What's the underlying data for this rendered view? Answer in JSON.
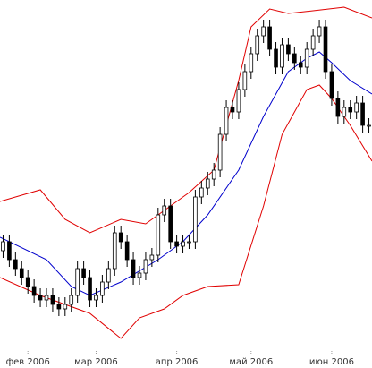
{
  "chart_data": {
    "type": "candlestick",
    "xlim": [
      -0.5,
      59.5
    ],
    "ylim": [
      0,
      411
    ],
    "x_labels": [
      {
        "value": 4,
        "label": "фев 2006"
      },
      {
        "value": 15,
        "label": "мар 2006"
      },
      {
        "value": 28,
        "label": "апр 2006"
      },
      {
        "value": 40,
        "label": "май 2006"
      },
      {
        "value": 53,
        "label": "июн 2006"
      }
    ],
    "up_color": "#ffffff",
    "down_color": "#000000",
    "wick_color": "#000000",
    "candles": {
      "open": [
        131,
        141,
        121,
        111,
        101,
        91,
        81,
        76,
        81,
        71,
        66,
        71,
        81,
        111,
        101,
        76,
        81,
        96,
        111,
        151,
        141,
        121,
        101,
        106,
        121,
        126,
        171,
        181,
        141,
        136,
        141,
        141,
        191,
        201,
        211,
        221,
        261,
        291,
        286,
        311,
        331,
        351,
        371,
        381,
        356,
        336,
        361,
        351,
        341,
        336,
        356,
        371,
        381,
        331,
        301,
        281,
        291,
        286,
        296,
        271
      ],
      "high": [
        149,
        149,
        129,
        119,
        109,
        99,
        89,
        89,
        89,
        79,
        79,
        89,
        119,
        119,
        109,
        89,
        104,
        119,
        159,
        159,
        149,
        129,
        114,
        129,
        134,
        179,
        189,
        189,
        149,
        149,
        149,
        199,
        209,
        219,
        229,
        269,
        299,
        299,
        319,
        339,
        359,
        379,
        389,
        389,
        364,
        369,
        369,
        359,
        349,
        364,
        379,
        389,
        389,
        339,
        309,
        299,
        299,
        304,
        304,
        279
      ],
      "low": [
        123,
        113,
        103,
        93,
        83,
        73,
        68,
        68,
        63,
        58,
        58,
        63,
        73,
        93,
        68,
        68,
        73,
        88,
        103,
        133,
        113,
        93,
        93,
        98,
        113,
        118,
        163,
        133,
        128,
        128,
        133,
        133,
        183,
        193,
        203,
        213,
        253,
        278,
        278,
        303,
        323,
        343,
        363,
        348,
        328,
        328,
        343,
        333,
        328,
        328,
        348,
        363,
        323,
        293,
        273,
        273,
        278,
        278,
        263,
        263
      ],
      "close": [
        141,
        121,
        111,
        101,
        91,
        81,
        76,
        81,
        71,
        66,
        71,
        81,
        111,
        101,
        76,
        81,
        96,
        111,
        151,
        141,
        121,
        101,
        106,
        121,
        126,
        171,
        181,
        141,
        136,
        141,
        141,
        191,
        201,
        211,
        221,
        261,
        291,
        286,
        311,
        331,
        351,
        371,
        381,
        356,
        336,
        361,
        351,
        341,
        336,
        356,
        371,
        381,
        331,
        301,
        281,
        291,
        286,
        296,
        271,
        271
      ]
    },
    "lines": [
      {
        "color": "#e00000",
        "x": [
          -0.5,
          6,
          10,
          14,
          19,
          23,
          27,
          30,
          34,
          38,
          40,
          43,
          46,
          50,
          55,
          59.5
        ],
        "values": [
          186,
          199,
          166,
          151,
          166,
          161,
          181,
          196,
          221,
          321,
          381,
          401,
          396,
          399,
          403,
          391
        ]
      },
      {
        "color": "#0000cc",
        "x": [
          -0.5,
          7,
          11,
          14,
          19,
          25,
          29,
          33,
          38,
          42,
          46,
          49,
          51,
          53,
          56,
          59.5
        ],
        "values": [
          146,
          121,
          91,
          81,
          96,
          121,
          141,
          171,
          221,
          281,
          331,
          346,
          353,
          341,
          321,
          306
        ]
      },
      {
        "color": "#e00000",
        "x": [
          -0.5,
          6,
          10,
          14,
          19,
          22,
          26,
          29,
          33,
          38,
          42,
          45,
          49,
          51,
          53,
          56,
          59.5
        ],
        "values": [
          101,
          81,
          71,
          61,
          33,
          56,
          66,
          81,
          91,
          93,
          181,
          261,
          311,
          316,
          301,
          271,
          231
        ]
      }
    ]
  }
}
